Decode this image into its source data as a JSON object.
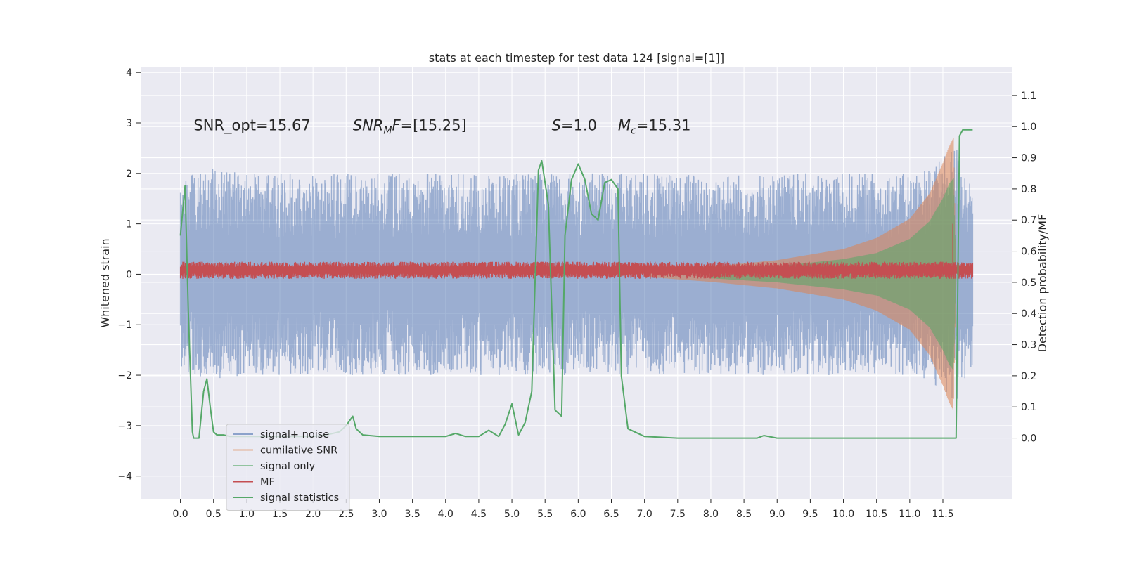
{
  "chart_data": {
    "type": "line",
    "title": "stats at each timestep for test data 124 [signal=[1]]",
    "ylabel": "Whitened strain",
    "y2label": "Detection probability/MF",
    "xlim": [
      -0.6,
      12.55
    ],
    "ylim": [
      -4.45,
      4.1
    ],
    "y2lim": [
      -0.195,
      1.19
    ],
    "x_ticks": [
      0.0,
      0.5,
      1.0,
      1.5,
      2.0,
      2.5,
      3.0,
      3.5,
      4.0,
      4.5,
      5.0,
      5.5,
      6.0,
      6.5,
      7.0,
      7.5,
      8.0,
      8.5,
      9.0,
      9.5,
      10.0,
      10.5,
      11.0,
      11.5
    ],
    "x_tick_labels": [
      "0.0",
      "0.5",
      "1.0",
      "1.5",
      "2.0",
      "2.5",
      "3.0",
      "3.5",
      "4.0",
      "4.5",
      "5.0",
      "5.5",
      "6.0",
      "6.5",
      "7.0",
      "7.5",
      "8.0",
      "8.5",
      "9.0",
      "9.5",
      "10.0",
      "10.5",
      "11.0",
      "11.5"
    ],
    "y_ticks": [
      4,
      3,
      2,
      1,
      0,
      -1,
      -2,
      -3,
      -4
    ],
    "y_tick_labels": [
      "4",
      "3",
      "2",
      "1",
      "0",
      "−1",
      "−2",
      "−3",
      "−4"
    ],
    "y2_ticks": [
      1.1,
      1.0,
      0.9,
      0.8,
      0.7,
      0.6,
      0.5,
      0.4,
      0.3,
      0.2,
      0.1,
      0.0
    ],
    "y2_tick_labels": [
      "1.1",
      "1.0",
      "0.9",
      "0.8",
      "0.7",
      "0.6",
      "0.5",
      "0.4",
      "0.3",
      "0.2",
      "0.1",
      "0.0"
    ],
    "grid": true,
    "legend_position": "lower-left",
    "annotations": [
      {
        "x": 0.2,
        "y": 2.95,
        "parts": [
          {
            "t": "SNR_opt=15.67",
            "i": false
          }
        ]
      },
      {
        "x": 2.6,
        "y": 2.95,
        "parts": [
          {
            "t": "SNR",
            "i": true
          },
          {
            "t": "M",
            "i": true,
            "sub": true
          },
          {
            "t": "F",
            "i": true
          },
          {
            "t": "=[15.25]",
            "i": false
          }
        ]
      },
      {
        "x": 5.6,
        "y": 2.95,
        "parts": [
          {
            "t": "S",
            "i": true
          },
          {
            "t": "=1.0",
            "i": false
          }
        ]
      },
      {
        "x": 6.6,
        "y": 2.95,
        "parts": [
          {
            "t": "M",
            "i": true
          },
          {
            "t": "c",
            "i": true,
            "sub": true
          },
          {
            "t": "=15.31",
            "i": false
          }
        ]
      }
    ],
    "series": [
      {
        "name": "signal+ noise",
        "color": "#4c72b0",
        "opacity": 0.5,
        "axis": "left",
        "kind": "noise",
        "envelope_x": [
          0.0,
          0.5,
          1.0,
          2.0,
          3.0,
          4.0,
          5.0,
          6.0,
          7.0,
          8.0,
          9.0,
          10.0,
          11.0,
          11.5,
          11.7,
          11.95
        ],
        "envelope_y": [
          1.9,
          2.1,
          2.0,
          2.0,
          2.0,
          2.0,
          2.0,
          2.0,
          2.0,
          2.0,
          2.0,
          2.0,
          2.0,
          2.3,
          2.6,
          1.8
        ]
      },
      {
        "name": "cumilative SNR",
        "color": "#dd8452",
        "opacity": 0.5,
        "axis": "left",
        "kind": "chirp",
        "envelope_x": [
          7.0,
          8.0,
          9.0,
          10.0,
          10.5,
          11.0,
          11.3,
          11.5,
          11.6,
          11.66,
          11.7
        ],
        "envelope_y": [
          0.05,
          0.15,
          0.28,
          0.5,
          0.72,
          1.1,
          1.6,
          2.2,
          2.55,
          2.7,
          0.0
        ]
      },
      {
        "name": "signal only",
        "color": "#55a868",
        "opacity": 0.5,
        "axis": "left",
        "kind": "chirp",
        "envelope_x": [
          8.0,
          9.0,
          10.0,
          10.5,
          11.0,
          11.3,
          11.5,
          11.6,
          11.66,
          11.7
        ],
        "envelope_y": [
          0.08,
          0.16,
          0.3,
          0.42,
          0.7,
          1.05,
          1.5,
          1.8,
          1.9,
          0.0
        ]
      },
      {
        "name": "MF",
        "color": "#c44e52",
        "opacity": 1.0,
        "axis": "left",
        "kind": "noise",
        "envelope_x": [
          0.0,
          11.95
        ],
        "envelope_y": [
          0.17,
          0.17
        ],
        "spike_x": 11.65,
        "spike_y": 1.0
      },
      {
        "name": "signal statistics",
        "color": "#55a868",
        "opacity": 1.0,
        "axis": "right",
        "kind": "line",
        "x": [
          0.0,
          0.07,
          0.12,
          0.18,
          0.2,
          0.28,
          0.35,
          0.4,
          0.45,
          0.5,
          0.55,
          0.65,
          0.75,
          0.85,
          1.0,
          1.2,
          1.5,
          1.8,
          2.0,
          2.2,
          2.4,
          2.5,
          2.6,
          2.65,
          2.75,
          3.0,
          3.3,
          3.6,
          4.0,
          4.15,
          4.3,
          4.5,
          4.65,
          4.8,
          4.9,
          5.0,
          5.1,
          5.2,
          5.3,
          5.4,
          5.45,
          5.55,
          5.65,
          5.75,
          5.8,
          5.9,
          6.0,
          6.1,
          6.2,
          6.3,
          6.4,
          6.5,
          6.6,
          6.65,
          6.75,
          7.0,
          7.5,
          8.0,
          8.5,
          8.7,
          8.8,
          9.0,
          9.5,
          10.0,
          10.5,
          11.0,
          11.5,
          11.7,
          11.75,
          11.8,
          11.85,
          11.95
        ],
        "y": [
          0.65,
          0.81,
          0.4,
          0.02,
          0.0,
          0.0,
          0.15,
          0.19,
          0.1,
          0.02,
          0.01,
          0.01,
          0.005,
          0.005,
          0.005,
          0.005,
          0.005,
          0.005,
          0.005,
          0.01,
          0.02,
          0.04,
          0.07,
          0.03,
          0.01,
          0.005,
          0.005,
          0.005,
          0.005,
          0.015,
          0.005,
          0.005,
          0.025,
          0.005,
          0.045,
          0.11,
          0.01,
          0.05,
          0.15,
          0.86,
          0.89,
          0.75,
          0.09,
          0.07,
          0.65,
          0.83,
          0.88,
          0.83,
          0.72,
          0.7,
          0.82,
          0.83,
          0.8,
          0.2,
          0.03,
          0.005,
          0.0,
          0.0,
          0.0,
          0.0,
          0.008,
          0.0,
          0.0,
          0.0,
          0.0,
          0.0,
          0.0,
          0.0,
          0.97,
          0.99,
          0.99,
          0.99
        ]
      }
    ]
  }
}
